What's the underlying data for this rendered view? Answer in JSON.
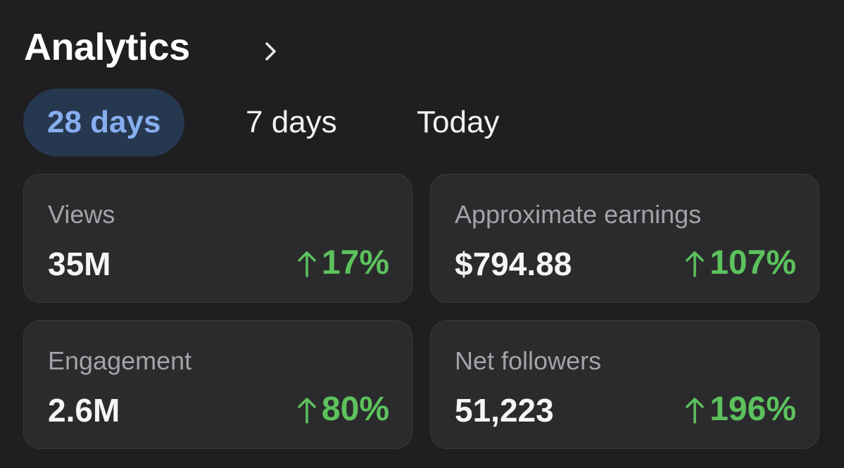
{
  "header": {
    "title": "Analytics"
  },
  "tabs": [
    "28 days",
    "7 days",
    "Today"
  ],
  "cards": [
    {
      "label": "Views",
      "value": "35M",
      "change": "17%"
    },
    {
      "label": "Approximate earnings",
      "value": "$794.88",
      "change": "107%"
    },
    {
      "label": "Engagement",
      "value": "2.6M",
      "change": "80%"
    },
    {
      "label": "Net followers",
      "value": "51,223",
      "change": "196%"
    }
  ]
}
